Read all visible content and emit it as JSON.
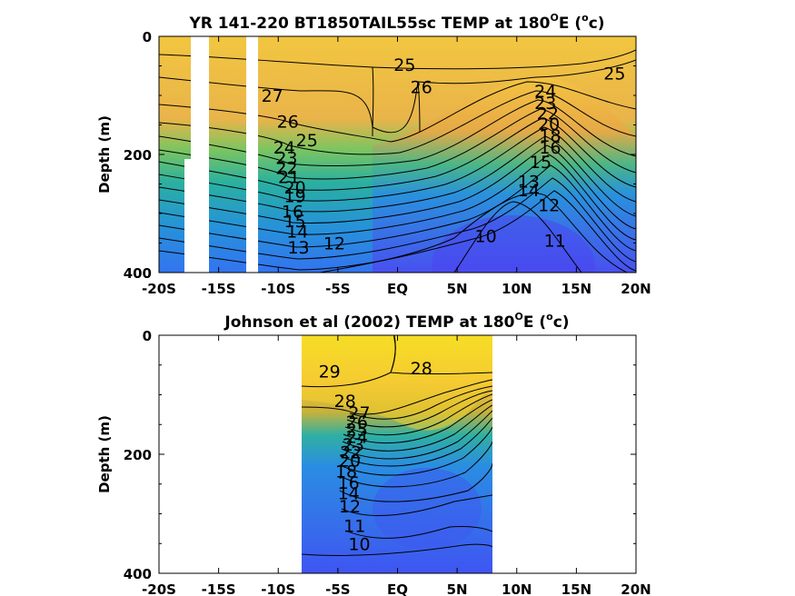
{
  "chart_data": [
    {
      "type": "contour",
      "title_prefix": "YR 141-220 BT1850TAIL55sc TEMP at 180",
      "title_sup": "O",
      "title_mid": "E (",
      "title_sup2": "o",
      "title_suffix": "c)",
      "ylabel": "Depth (m)",
      "xlim": [
        -20,
        20
      ],
      "ylim": [
        0,
        400
      ],
      "y_reversed": true,
      "x_ticks": [
        -20,
        -15,
        -10,
        -5,
        0,
        5,
        10,
        15,
        20
      ],
      "x_tick_labels": [
        "-20S",
        "-15S",
        "-10S",
        "-5S",
        "EQ",
        "5N",
        "10N",
        "15N",
        "20N"
      ],
      "y_ticks": [
        0,
        200,
        400
      ],
      "y_tick_labels": [
        "0",
        "200",
        "400"
      ],
      "data_extent_x": [
        -20,
        20
      ],
      "gaps_x": [
        [
          -17.5,
          -16.7
        ],
        [
          -15.3,
          -15.0
        ],
        [
          -11.8,
          -11.4
        ]
      ],
      "contour_labels": [
        {
          "text": "27",
          "x": -10.5,
          "y": 100
        },
        {
          "text": "26",
          "x": -9.2,
          "y": 144
        },
        {
          "text": "25",
          "x": -7.6,
          "y": 175
        },
        {
          "text": "24",
          "x": -9.5,
          "y": 188
        },
        {
          "text": "23",
          "x": -9.3,
          "y": 205
        },
        {
          "text": "22",
          "x": -9.3,
          "y": 222
        },
        {
          "text": "21",
          "x": -9.1,
          "y": 238
        },
        {
          "text": "20",
          "x": -8.6,
          "y": 255
        },
        {
          "text": "19",
          "x": -8.6,
          "y": 270
        },
        {
          "text": "16",
          "x": -8.8,
          "y": 296
        },
        {
          "text": "15",
          "x": -8.6,
          "y": 312
        },
        {
          "text": "14",
          "x": -8.4,
          "y": 330
        },
        {
          "text": "13",
          "x": -8.3,
          "y": 357
        },
        {
          "text": "12",
          "x": -5.3,
          "y": 350
        },
        {
          "text": "25",
          "x": 0.6,
          "y": 48
        },
        {
          "text": "26",
          "x": 2.0,
          "y": 85
        },
        {
          "text": "25",
          "x": 18.2,
          "y": 62
        },
        {
          "text": "24",
          "x": 12.4,
          "y": 92
        },
        {
          "text": "23",
          "x": 12.4,
          "y": 112
        },
        {
          "text": "22",
          "x": 12.6,
          "y": 130
        },
        {
          "text": "20",
          "x": 12.7,
          "y": 148
        },
        {
          "text": "18",
          "x": 12.8,
          "y": 168
        },
        {
          "text": "16",
          "x": 12.8,
          "y": 188
        },
        {
          "text": "15",
          "x": 12.0,
          "y": 212
        },
        {
          "text": "13",
          "x": 11.0,
          "y": 245
        },
        {
          "text": "14",
          "x": 11.0,
          "y": 260
        },
        {
          "text": "12",
          "x": 12.7,
          "y": 285
        },
        {
          "text": "11",
          "x": 13.2,
          "y": 345
        },
        {
          "text": "10",
          "x": 7.4,
          "y": 338
        }
      ]
    },
    {
      "type": "contour",
      "title_prefix": "Johnson et al (2002) TEMP at 180",
      "title_sup": "O",
      "title_mid": "E (",
      "title_sup2": "o",
      "title_suffix": "c)",
      "ylabel": "Depth (m)",
      "xlim": [
        -20,
        20
      ],
      "ylim": [
        0,
        400
      ],
      "y_reversed": true,
      "x_ticks": [
        -20,
        -15,
        -10,
        -5,
        0,
        5,
        10,
        15,
        20
      ],
      "x_tick_labels": [
        "-20S",
        "-15S",
        "-10S",
        "-5S",
        "EQ",
        "5N",
        "10N",
        "15N",
        "20N"
      ],
      "y_ticks": [
        0,
        200,
        400
      ],
      "y_tick_labels": [
        "0",
        "200",
        "400"
      ],
      "data_extent_x": [
        -8,
        8
      ],
      "gaps_x": [],
      "contour_labels": [
        {
          "text": "29",
          "x": -5.7,
          "y": 60
        },
        {
          "text": "28",
          "x": 2.0,
          "y": 55
        },
        {
          "text": "28",
          "x": -4.4,
          "y": 110
        },
        {
          "text": "27",
          "x": -3.2,
          "y": 130
        },
        {
          "text": "26",
          "x": -3.4,
          "y": 145
        },
        {
          "text": "25",
          "x": -3.4,
          "y": 158
        },
        {
          "text": "24",
          "x": -3.4,
          "y": 170
        },
        {
          "text": "23",
          "x": -3.7,
          "y": 183
        },
        {
          "text": "22",
          "x": -3.9,
          "y": 196
        },
        {
          "text": "20",
          "x": -4.0,
          "y": 210
        },
        {
          "text": "18",
          "x": -4.3,
          "y": 228
        },
        {
          "text": "16",
          "x": -4.1,
          "y": 247
        },
        {
          "text": "14",
          "x": -4.1,
          "y": 265
        },
        {
          "text": "12",
          "x": -4.0,
          "y": 287
        },
        {
          "text": "11",
          "x": -3.6,
          "y": 320
        },
        {
          "text": "10",
          "x": -3.2,
          "y": 350
        }
      ]
    }
  ]
}
